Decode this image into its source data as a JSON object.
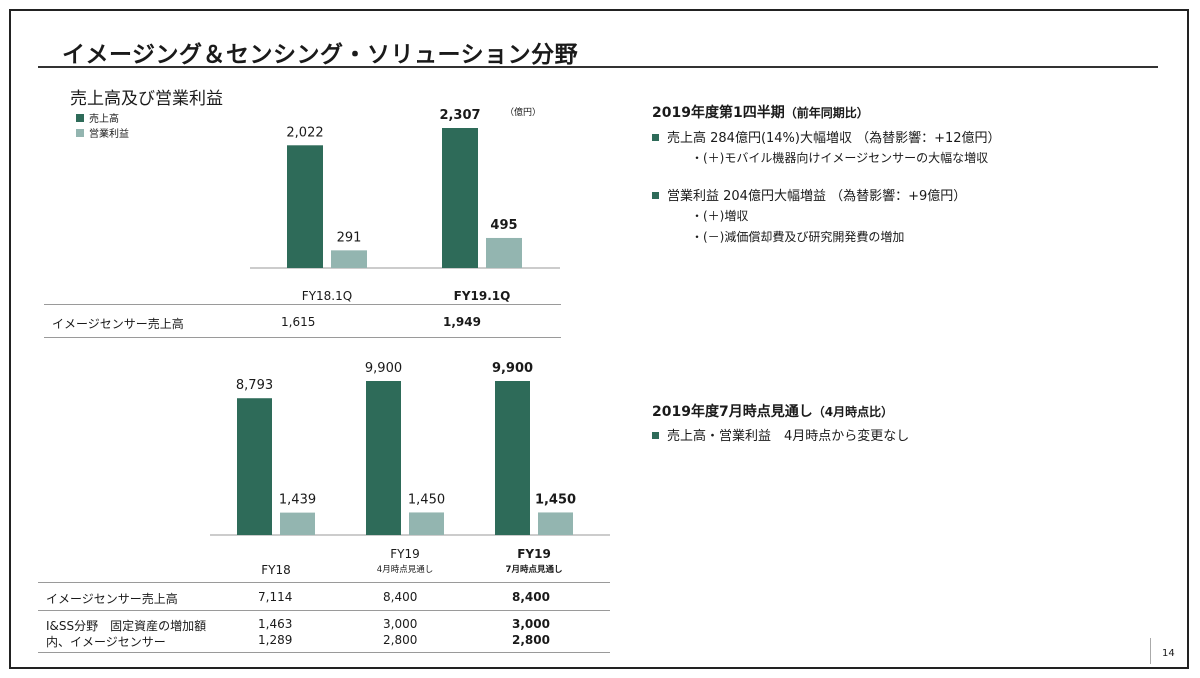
{
  "title": "イメージング＆センシング・ソリューション分野",
  "colors": {
    "sales": "#2e6b59",
    "profit": "#93b5b0",
    "accent": "#2e6b59"
  },
  "top_section": {
    "subtitle": "売上高及び営業利益",
    "unit": "（億円）",
    "legend": [
      "売上高",
      "営業利益"
    ]
  },
  "chart_data": [
    {
      "type": "bar",
      "categories": [
        "FY18.1Q",
        "FY19.1Q"
      ],
      "series": [
        {
          "name": "売上高",
          "values": [
            2022,
            2307
          ]
        },
        {
          "name": "営業利益",
          "values": [
            291,
            495
          ]
        }
      ],
      "value_labels": [
        [
          "2,022",
          "2,307"
        ],
        [
          "291",
          "495"
        ]
      ],
      "ylim": [
        0,
        2600
      ]
    },
    {
      "type": "bar",
      "categories": [
        "FY18",
        "FY19",
        "FY19"
      ],
      "category_sublabels": [
        "",
        "4月時点見通し",
        "7月時点見通し"
      ],
      "series": [
        {
          "name": "売上高",
          "values": [
            8793,
            9900,
            9900
          ]
        },
        {
          "name": "営業利益",
          "values": [
            1439,
            1450,
            1450
          ]
        }
      ],
      "value_labels": [
        [
          "8,793",
          "9,900",
          "9,900"
        ],
        [
          "1,439",
          "1,450",
          "1,450"
        ]
      ],
      "ylim": [
        0,
        11000
      ]
    }
  ],
  "top_table": {
    "row_label": "イメージセンサー売上高",
    "values": [
      "1,615",
      "1,949"
    ]
  },
  "bottom_table": {
    "row1_label": "イメージセンサー売上高",
    "row1_values": [
      "7,114",
      "8,400",
      "8,400"
    ],
    "row2_label": "I&SS分野　固定資産の増加額",
    "row2_values": [
      "1,463",
      "3,000",
      "3,000"
    ],
    "row3_label": "内、イメージセンサー",
    "row3_values": [
      "1,289",
      "2,800",
      "2,800"
    ]
  },
  "right_panel": {
    "q1_heading": "2019年度第1四半期",
    "q1_heading_note": "（前年同期比）",
    "q1_sales": "売上高 284億円(14%)大幅増収 （為替影響：+12億円）",
    "q1_sales_sub": "・(＋)モバイル機器向けイメージセンサーの大幅な増収",
    "q1_profit": "営業利益 204億円大幅増益 （為替影響：+9億円）",
    "q1_profit_sub1": "・(＋)増収",
    "q1_profit_sub2": "・(－)減価償却費及び研究開発費の増加",
    "fy_heading": "2019年度7月時点見通し",
    "fy_heading_note": "（4月時点比）",
    "fy_line": "売上高・営業利益　4月時点から変更なし"
  },
  "page_number": "14"
}
